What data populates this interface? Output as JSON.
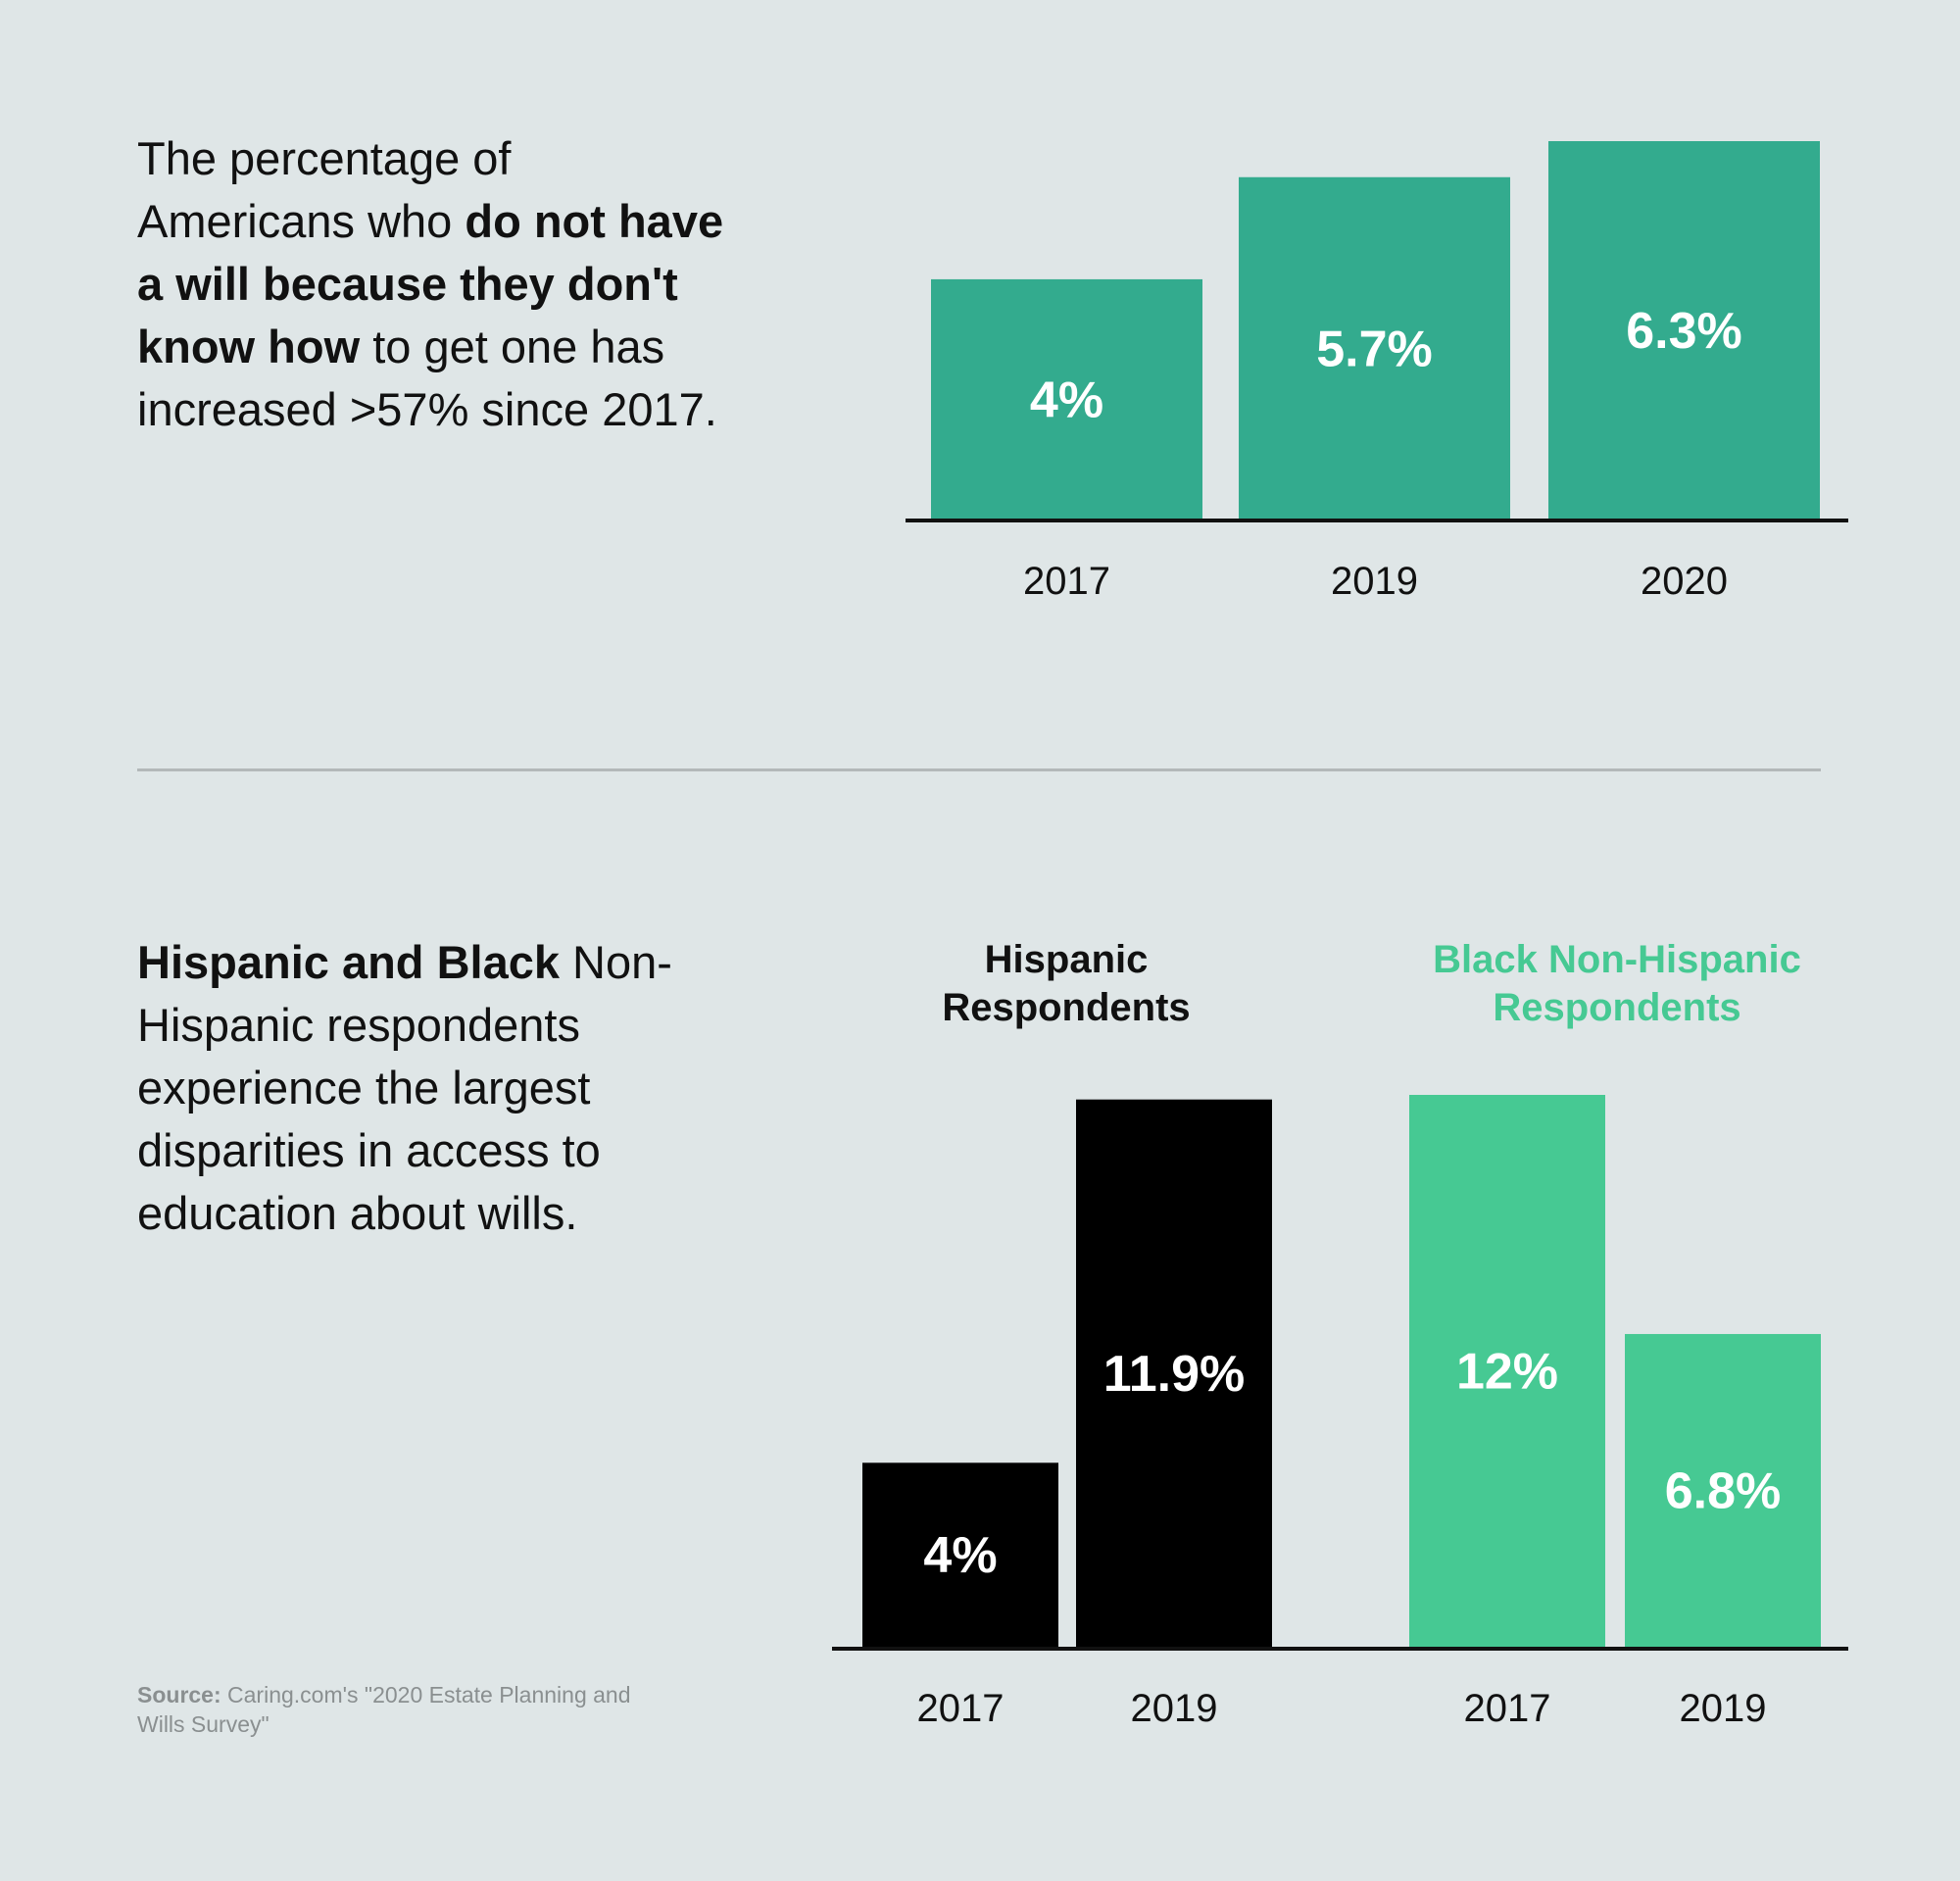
{
  "colors": {
    "background": "#dfe6e7",
    "teal": "#33ab8e",
    "black": "#000000",
    "green": "#46c993",
    "text": "#111111",
    "divider": "#b3b8b9",
    "source": "#8a8f90"
  },
  "blurbs": {
    "top": {
      "p1": "The percentage of Americans who ",
      "b1": "do not have a will because they don't know how",
      "p2": " to get one has increased >57% since 2017."
    },
    "bottom": {
      "b1": "Hispanic and Black",
      "p1": " Non-Hispanic respondents experience the largest disparities in access to education about wills."
    }
  },
  "source": {
    "label": "Source:",
    "text": " Caring.com's \"2020 Estate Planning and Wills Survey\""
  },
  "chart_data": [
    {
      "type": "bar",
      "categories": [
        "2017",
        "2019",
        "2020"
      ],
      "values": [
        4,
        5.7,
        6.3
      ],
      "value_labels": [
        "4%",
        "5.7%",
        "6.3%"
      ],
      "ylim": [
        0,
        6.3
      ],
      "grid": false,
      "color": "#33ab8e"
    },
    {
      "type": "bar",
      "groups": [
        {
          "title_line1": "Hispanic",
          "title_line2": "Respondents",
          "color": "#000000",
          "title_color": "#111111",
          "categories": [
            "2017",
            "2019"
          ],
          "values": [
            4,
            11.9
          ],
          "value_labels": [
            "4%",
            "11.9%"
          ]
        },
        {
          "title_line1": "Black Non-Hispanic",
          "title_line2": "Respondents",
          "color": "#46c993",
          "title_color": "#46c993",
          "categories": [
            "2017",
            "2019"
          ],
          "values": [
            12,
            6.8
          ],
          "value_labels": [
            "12%",
            "6.8%"
          ]
        }
      ],
      "ylim": [
        0,
        12
      ],
      "grid": false
    }
  ]
}
